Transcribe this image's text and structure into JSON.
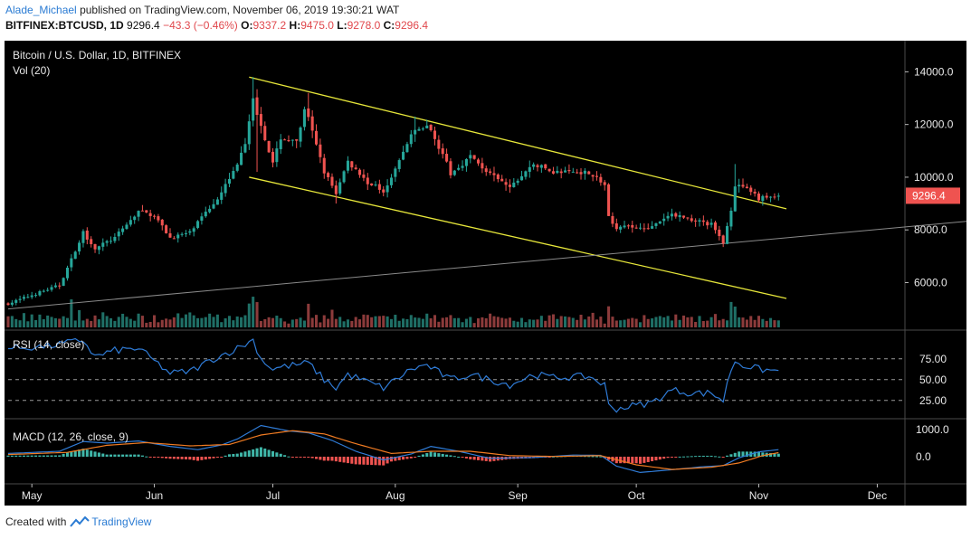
{
  "header": {
    "author": "Alade_Michael",
    "published_text": "published on TradingView.com, November 06, 2019 19:30:21 WAT",
    "symbol_line": "BITFINEX:BTCUSD, 1D",
    "last": "9296.4",
    "change": "−43.3 (−0.46%)",
    "o_label": "O:",
    "o": "9337.2",
    "h_label": "H:",
    "h": "9475.0",
    "l_label": "L:",
    "l": "9278.0",
    "c_label": "C:",
    "c": "9296.4"
  },
  "footer": {
    "created_with": "Created with",
    "brand": "TradingView"
  },
  "colors": {
    "background": "#000000",
    "up": "#26a69a",
    "down": "#ef5350",
    "vol_up": "#1f6f66",
    "vol_down": "#8c3b3b",
    "channel": "#e6e63a",
    "trendline": "#8a8a8a",
    "rsi": "#2f7bd6",
    "macd_line": "#2f7bd6",
    "signal_line": "#f07b22",
    "price_tag": "#ef5350",
    "axis_text": "#e8e8e8",
    "divider": "#4a4a4a"
  },
  "chart_data": {
    "type": "candlestick",
    "title": "Bitcoin / U.S. Dollar, 1D, BITFINEX",
    "volume_label": "Vol (20)",
    "price_axis": {
      "ticks": [
        "14000.0",
        "12000.0",
        "10000.0",
        "8000.0",
        "6000.0"
      ],
      "range": [
        4300,
        14700
      ]
    },
    "last_price_label": "9296.4",
    "x_axis_labels": [
      "May",
      "Jun",
      "Jul",
      "Aug",
      "Sep",
      "Oct",
      "Nov",
      "Dec"
    ],
    "month_starts": [
      "2019-05-01",
      "2019-06-01",
      "2019-07-01",
      "2019-08-01",
      "2019-09-01",
      "2019-10-01",
      "2019-11-01",
      "2019-12-01"
    ],
    "first_date": "2019-04-25",
    "last_date": "2019-11-06",
    "axis_end_date": "2019-12-08",
    "close_anchors": [
      [
        "2019-04-25",
        5200
      ],
      [
        "2019-05-08",
        5900
      ],
      [
        "2019-05-12",
        7200
      ],
      [
        "2019-05-14",
        7900
      ],
      [
        "2019-05-17",
        7300
      ],
      [
        "2019-05-22",
        7700
      ],
      [
        "2019-05-28",
        8700
      ],
      [
        "2019-06-01",
        8550
      ],
      [
        "2019-06-05",
        7700
      ],
      [
        "2019-06-10",
        7900
      ],
      [
        "2019-06-16",
        9000
      ],
      [
        "2019-06-21",
        10200
      ],
      [
        "2019-06-24",
        11200
      ],
      [
        "2019-06-26",
        12900
      ],
      [
        "2019-06-28",
        12000
      ],
      [
        "2019-07-01",
        10500
      ],
      [
        "2019-07-03",
        11500
      ],
      [
        "2019-07-07",
        11300
      ],
      [
        "2019-07-09",
        12500
      ],
      [
        "2019-07-10",
        12200
      ],
      [
        "2019-07-14",
        10200
      ],
      [
        "2019-07-17",
        9400
      ],
      [
        "2019-07-20",
        10600
      ],
      [
        "2019-07-25",
        9800
      ],
      [
        "2019-07-29",
        9500
      ],
      [
        "2019-08-01",
        10300
      ],
      [
        "2019-08-05",
        11600
      ],
      [
        "2019-08-09",
        12000
      ],
      [
        "2019-08-13",
        10900
      ],
      [
        "2019-08-15",
        10100
      ],
      [
        "2019-08-20",
        10800
      ],
      [
        "2019-08-25",
        10100
      ],
      [
        "2019-08-30",
        9600
      ],
      [
        "2019-09-05",
        10500
      ],
      [
        "2019-09-10",
        10200
      ],
      [
        "2019-09-19",
        10200
      ],
      [
        "2019-09-23",
        9700
      ],
      [
        "2019-09-24",
        8500
      ],
      [
        "2019-09-26",
        8100
      ],
      [
        "2019-10-05",
        8100
      ],
      [
        "2019-10-10",
        8600
      ],
      [
        "2019-10-15",
        8400
      ],
      [
        "2019-10-20",
        8200
      ],
      [
        "2019-10-23",
        7500
      ],
      [
        "2019-10-25",
        8800
      ],
      [
        "2019-10-26",
        9700
      ],
      [
        "2019-10-28",
        9600
      ],
      [
        "2019-11-01",
        9200
      ],
      [
        "2019-11-06",
        9296
      ]
    ],
    "wick_highs": [
      [
        "2019-06-26",
        13800
      ],
      [
        "2019-07-10",
        13200
      ],
      [
        "2019-08-06",
        12300
      ],
      [
        "2019-10-26",
        10500
      ]
    ],
    "wick_lows": [
      [
        "2019-07-17",
        9000
      ],
      [
        "2019-10-23",
        7350
      ],
      [
        "2019-06-27",
        10200
      ]
    ],
    "volume_spikes": [
      [
        "2019-05-11",
        2.4
      ],
      [
        "2019-05-13",
        1.6
      ],
      [
        "2019-06-26",
        3.0
      ],
      [
        "2019-06-27",
        2.5
      ],
      [
        "2019-06-25",
        2.0
      ],
      [
        "2019-07-10",
        1.9
      ],
      [
        "2019-07-16",
        1.5
      ],
      [
        "2019-09-24",
        2.0
      ],
      [
        "2019-10-25",
        2.1
      ],
      [
        "2019-10-26",
        1.6
      ]
    ],
    "channel_upper": [
      [
        "2019-06-25",
        13800
      ],
      [
        "2019-11-08",
        8800
      ]
    ],
    "channel_lower": [
      [
        "2019-06-25",
        10000
      ],
      [
        "2019-11-08",
        5400
      ]
    ],
    "support_line": [
      [
        "2019-04-25",
        5000
      ],
      [
        "2019-12-08",
        8050
      ]
    ],
    "rsi": {
      "label": "RSI (14, close)",
      "ticks": [
        "75.00",
        "50.00",
        "25.00"
      ],
      "levels": [
        70,
        50,
        30
      ],
      "range": [
        15,
        95
      ],
      "anchors": [
        [
          "2019-04-25",
          80
        ],
        [
          "2019-05-05",
          82
        ],
        [
          "2019-05-14",
          88
        ],
        [
          "2019-05-17",
          72
        ],
        [
          "2019-05-22",
          78
        ],
        [
          "2019-05-28",
          80
        ],
        [
          "2019-06-05",
          56
        ],
        [
          "2019-06-10",
          58
        ],
        [
          "2019-06-16",
          70
        ],
        [
          "2019-06-22",
          80
        ],
        [
          "2019-06-26",
          88
        ],
        [
          "2019-06-28",
          70
        ],
        [
          "2019-07-01",
          60
        ],
        [
          "2019-07-03",
          62
        ],
        [
          "2019-07-10",
          66
        ],
        [
          "2019-07-14",
          50
        ],
        [
          "2019-07-17",
          42
        ],
        [
          "2019-07-20",
          55
        ],
        [
          "2019-07-29",
          42
        ],
        [
          "2019-08-05",
          60
        ],
        [
          "2019-08-09",
          64
        ],
        [
          "2019-08-15",
          50
        ],
        [
          "2019-08-20",
          55
        ],
        [
          "2019-08-30",
          45
        ],
        [
          "2019-09-05",
          55
        ],
        [
          "2019-09-10",
          52
        ],
        [
          "2019-09-19",
          53
        ],
        [
          "2019-09-23",
          45
        ],
        [
          "2019-09-24",
          25
        ],
        [
          "2019-09-26",
          22
        ],
        [
          "2019-10-05",
          28
        ],
        [
          "2019-10-10",
          40
        ],
        [
          "2019-10-15",
          37
        ],
        [
          "2019-10-20",
          37
        ],
        [
          "2019-10-23",
          30
        ],
        [
          "2019-10-25",
          60
        ],
        [
          "2019-10-26",
          68
        ],
        [
          "2019-10-28",
          64
        ],
        [
          "2019-11-01",
          60
        ],
        [
          "2019-11-06",
          58
        ]
      ]
    },
    "macd": {
      "label": "MACD (12, 26, close, 9)",
      "ticks": [
        "1000.0",
        "0.0"
      ],
      "range": [
        -900,
        1300
      ],
      "macd_anchors": [
        [
          "2019-04-25",
          120
        ],
        [
          "2019-05-08",
          200
        ],
        [
          "2019-05-14",
          560
        ],
        [
          "2019-05-20",
          500
        ],
        [
          "2019-05-28",
          580
        ],
        [
          "2019-06-05",
          380
        ],
        [
          "2019-06-12",
          260
        ],
        [
          "2019-06-18",
          430
        ],
        [
          "2019-06-22",
          650
        ],
        [
          "2019-06-28",
          1150
        ],
        [
          "2019-07-05",
          950
        ],
        [
          "2019-07-10",
          880
        ],
        [
          "2019-07-16",
          600
        ],
        [
          "2019-07-22",
          200
        ],
        [
          "2019-07-29",
          -120
        ],
        [
          "2019-08-05",
          100
        ],
        [
          "2019-08-10",
          380
        ],
        [
          "2019-08-17",
          200
        ],
        [
          "2019-08-25",
          -60
        ],
        [
          "2019-09-05",
          -30
        ],
        [
          "2019-09-15",
          60
        ],
        [
          "2019-09-22",
          50
        ],
        [
          "2019-09-26",
          -350
        ],
        [
          "2019-10-02",
          -580
        ],
        [
          "2019-10-10",
          -480
        ],
        [
          "2019-10-17",
          -380
        ],
        [
          "2019-10-23",
          -330
        ],
        [
          "2019-10-27",
          -40
        ],
        [
          "2019-11-01",
          180
        ],
        [
          "2019-11-06",
          260
        ]
      ],
      "signal_anchors": [
        [
          "2019-04-25",
          80
        ],
        [
          "2019-05-10",
          160
        ],
        [
          "2019-05-20",
          420
        ],
        [
          "2019-05-30",
          520
        ],
        [
          "2019-06-10",
          400
        ],
        [
          "2019-06-20",
          450
        ],
        [
          "2019-06-28",
          800
        ],
        [
          "2019-07-06",
          960
        ],
        [
          "2019-07-14",
          840
        ],
        [
          "2019-07-22",
          480
        ],
        [
          "2019-07-31",
          120
        ],
        [
          "2019-08-10",
          200
        ],
        [
          "2019-08-20",
          200
        ],
        [
          "2019-08-30",
          40
        ],
        [
          "2019-09-10",
          10
        ],
        [
          "2019-09-22",
          40
        ],
        [
          "2019-10-01",
          -300
        ],
        [
          "2019-10-10",
          -470
        ],
        [
          "2019-10-20",
          -390
        ],
        [
          "2019-10-27",
          -230
        ],
        [
          "2019-11-02",
          40
        ],
        [
          "2019-11-06",
          150
        ]
      ]
    }
  }
}
